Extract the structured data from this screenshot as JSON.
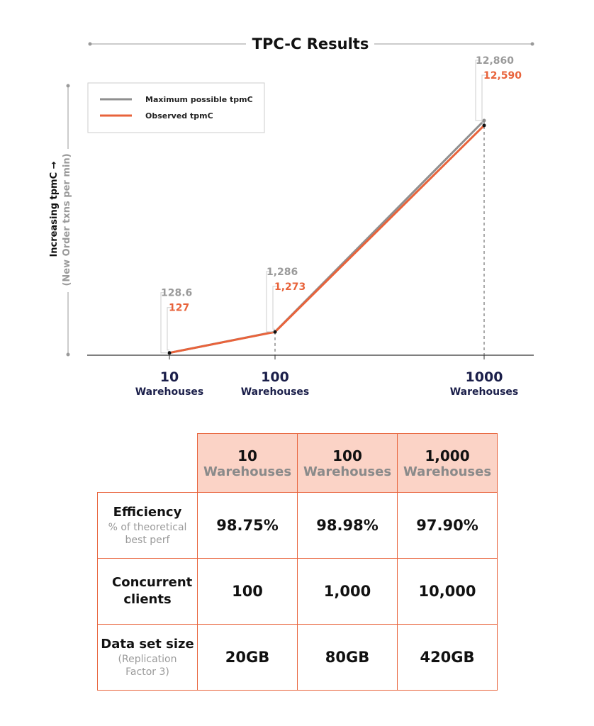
{
  "chart_data": {
    "type": "line",
    "title": "TPC-C Results",
    "ylabel": "Increasing tpmC →",
    "ylabel_sub": "(New Order txns per min)",
    "x": [
      10,
      100,
      1000
    ],
    "x_labels": [
      "10",
      "100",
      "1000"
    ],
    "x_sublabel": "Warehouses",
    "series": [
      {
        "name": "Maximum possible tpmC",
        "values": [
          128.6,
          1286,
          12860
        ],
        "labels": [
          "128.6",
          "1,286",
          "12,860"
        ],
        "color": "#8f8f8f"
      },
      {
        "name": "Observed tpmC",
        "values": [
          127,
          1273,
          12590
        ],
        "labels": [
          "127",
          "1,273",
          "12,590"
        ],
        "color": "#e8633b"
      }
    ],
    "legend_position": "top-left",
    "grid": false
  },
  "table": {
    "columns": [
      {
        "top": "10",
        "bottom": "Warehouses"
      },
      {
        "top": "100",
        "bottom": "Warehouses"
      },
      {
        "top": "1,000",
        "bottom": "Warehouses"
      }
    ],
    "rows": [
      {
        "label": "Efficiency",
        "sublabel": "% of theoretical best perf",
        "values": [
          "98.75%",
          "98.98%",
          "97.90%"
        ]
      },
      {
        "label": "Concurrent clients",
        "sublabel": "",
        "values": [
          "100",
          "1,000",
          "10,000"
        ]
      },
      {
        "label": "Data set size",
        "sublabel": "(Replication Factor 3)",
        "values": [
          "20GB",
          "80GB",
          "420GB"
        ]
      }
    ],
    "border_color": "#e8633b",
    "header_color": "#fbd3c6"
  }
}
